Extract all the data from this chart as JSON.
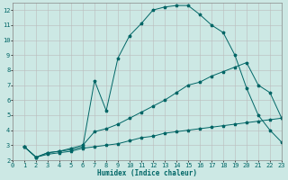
{
  "xlabel": "Humidex (Indice chaleur)",
  "background_color": "#cce8e4",
  "grid_color": "#bbbbbb",
  "line_color": "#006666",
  "xlim": [
    0,
    23
  ],
  "ylim": [
    2,
    12.5
  ],
  "xticks": [
    0,
    1,
    2,
    3,
    4,
    5,
    6,
    7,
    8,
    9,
    10,
    11,
    12,
    13,
    14,
    15,
    16,
    17,
    18,
    19,
    20,
    21,
    22,
    23
  ],
  "yticks": [
    2,
    3,
    4,
    5,
    6,
    7,
    8,
    9,
    10,
    11,
    12
  ],
  "curve1_x": [
    1,
    2,
    3,
    4,
    5,
    6,
    7,
    8,
    9,
    10,
    11,
    12,
    13,
    14,
    15,
    16,
    17,
    18,
    19,
    20,
    21,
    22,
    23
  ],
  "curve1_y": [
    2.9,
    2.2,
    2.5,
    2.6,
    2.7,
    2.9,
    7.3,
    5.3,
    8.8,
    10.3,
    11.1,
    12.0,
    12.2,
    12.3,
    12.3,
    11.7,
    11.0,
    10.5,
    9.0,
    6.8,
    5.0,
    4.0,
    3.2
  ],
  "curve2_x": [
    1,
    2,
    3,
    4,
    5,
    6,
    7,
    8,
    9,
    10,
    11,
    12,
    13,
    14,
    15,
    16,
    17,
    18,
    19,
    20,
    21,
    22,
    23
  ],
  "curve2_y": [
    2.9,
    2.2,
    2.5,
    2.6,
    2.8,
    3.0,
    3.9,
    4.1,
    4.4,
    4.8,
    5.2,
    5.6,
    6.0,
    6.5,
    7.0,
    7.2,
    7.6,
    7.9,
    8.2,
    8.5,
    7.0,
    6.5,
    4.8
  ],
  "curve3_x": [
    1,
    2,
    3,
    4,
    5,
    6,
    7,
    8,
    9,
    10,
    11,
    12,
    13,
    14,
    15,
    16,
    17,
    18,
    19,
    20,
    21,
    22,
    23
  ],
  "curve3_y": [
    2.9,
    2.2,
    2.4,
    2.5,
    2.6,
    2.8,
    2.9,
    3.0,
    3.1,
    3.3,
    3.5,
    3.6,
    3.8,
    3.9,
    4.0,
    4.1,
    4.2,
    4.3,
    4.4,
    4.5,
    4.6,
    4.7,
    4.8
  ]
}
